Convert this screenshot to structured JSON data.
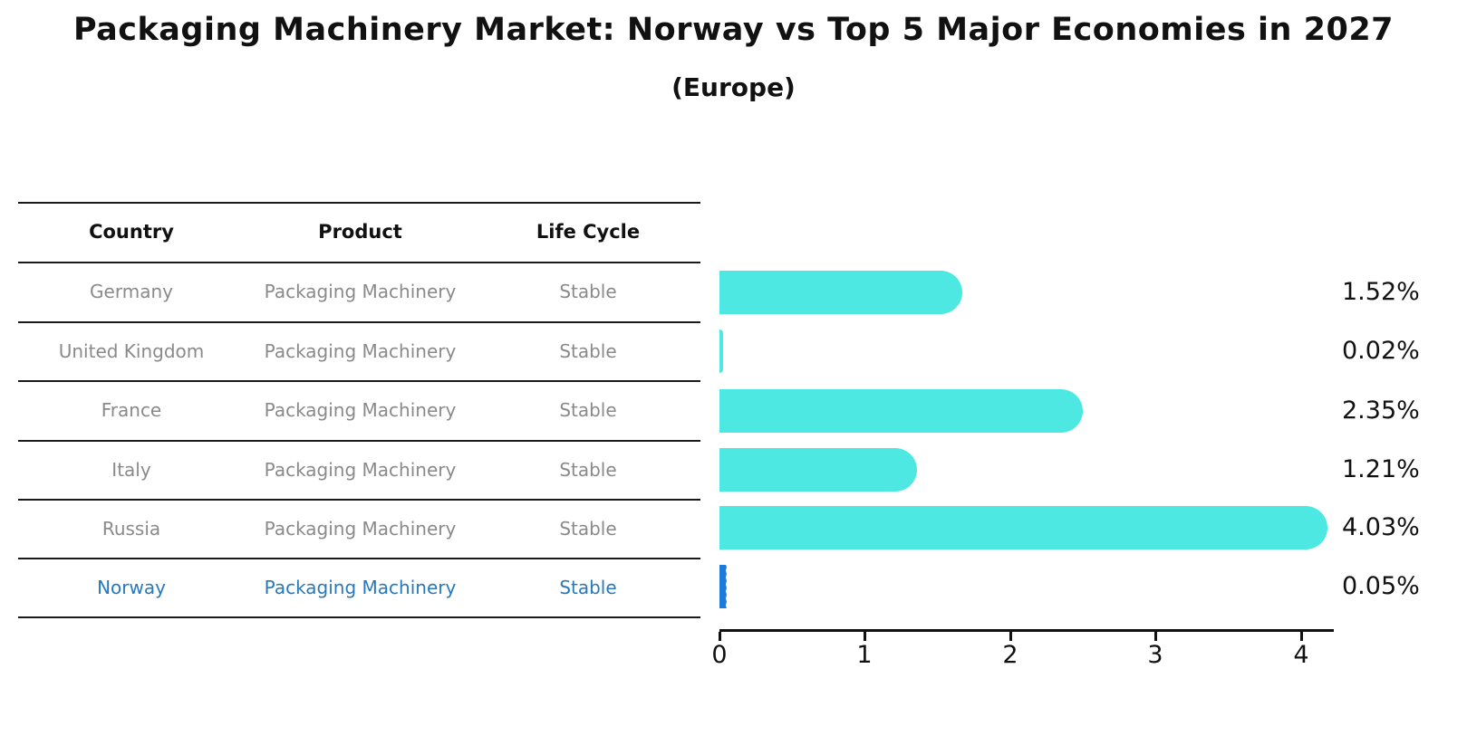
{
  "title": "Packaging Machinery Market: Norway vs Top 5 Major Economies in 2027",
  "subtitle": "(Europe)",
  "table": {
    "headers": [
      "Country",
      "Product",
      "Life Cycle"
    ],
    "rows": [
      {
        "country": "Germany",
        "product": "Packaging Machinery",
        "life_cycle": "Stable",
        "highlight": false
      },
      {
        "country": "United Kingdom",
        "product": "Packaging Machinery",
        "life_cycle": "Stable",
        "highlight": false
      },
      {
        "country": "France",
        "product": "Packaging Machinery",
        "life_cycle": "Stable",
        "highlight": false
      },
      {
        "country": "Italy",
        "product": "Packaging Machinery",
        "life_cycle": "Stable",
        "highlight": false
      },
      {
        "country": "Russia",
        "product": "Packaging Machinery",
        "life_cycle": "Stable",
        "highlight": false
      },
      {
        "country": "Norway",
        "product": "Packaging Machinery",
        "life_cycle": "Stable",
        "highlight": true
      }
    ]
  },
  "chart_data": {
    "type": "bar",
    "orientation": "horizontal",
    "title": "Packaging Machinery Market: Norway vs Top 5 Major Economies in 2027 (Europe)",
    "categories": [
      "Germany",
      "United Kingdom",
      "France",
      "Italy",
      "Russia",
      "Norway"
    ],
    "values": [
      1.52,
      0.02,
      2.35,
      1.21,
      4.03,
      0.05
    ],
    "value_labels": [
      "1.52%",
      "0.02%",
      "2.35%",
      "1.21%",
      "4.03%",
      "0.05%"
    ],
    "unit": "%",
    "x_ticks": [
      "0",
      "1",
      "2",
      "3",
      "4"
    ],
    "xlim": [
      0,
      4.22
    ],
    "xlabel": "",
    "ylabel": "",
    "grid": false,
    "legend": false,
    "bar_color": "#4de8e2",
    "highlight_color": "#1e7ad9",
    "highlight_index": 5,
    "highlight_text_color": "#2878be"
  }
}
